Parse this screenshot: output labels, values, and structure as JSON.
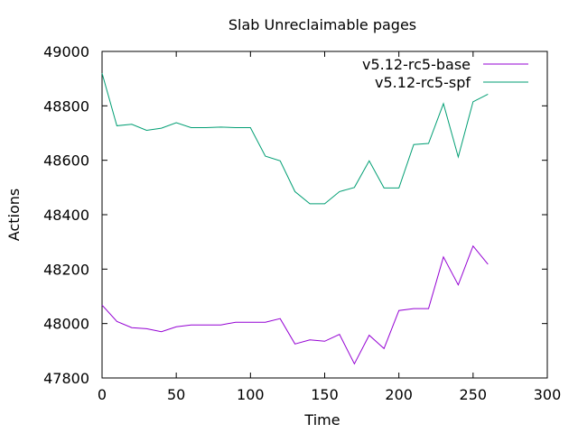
{
  "chart_data": {
    "type": "line",
    "title": "Slab Unreclaimable pages",
    "xlabel": "Time",
    "ylabel": "Actions",
    "xlim": [
      0,
      300
    ],
    "ylim": [
      47800,
      49000
    ],
    "x_ticks": [
      0,
      50,
      100,
      150,
      200,
      250,
      300
    ],
    "y_ticks": [
      47800,
      48000,
      48200,
      48400,
      48600,
      48800,
      49000
    ],
    "grid": false,
    "legend_position": "top-right",
    "x": [
      0,
      10,
      20,
      30,
      40,
      50,
      60,
      70,
      80,
      90,
      100,
      110,
      120,
      130,
      140,
      150,
      160,
      170,
      180,
      190,
      200,
      210,
      220,
      230,
      240,
      250,
      260
    ],
    "series": [
      {
        "name": "v5.12-rc5-base",
        "color": "#9400d3",
        "values": [
          48068,
          48008,
          47985,
          47981,
          47970,
          47988,
          47995,
          47995,
          47995,
          48005,
          48005,
          48005,
          48018,
          47925,
          47940,
          47935,
          47960,
          47852,
          47957,
          47908,
          48048,
          48055,
          48055,
          48245,
          48142,
          48285,
          48218
        ]
      },
      {
        "name": "v5.12-rc5-spf",
        "color": "#009e73",
        "values": [
          48920,
          48727,
          48732,
          48710,
          48718,
          48738,
          48720,
          48720,
          48722,
          48720,
          48720,
          48615,
          48598,
          48485,
          48440,
          48440,
          48485,
          48500,
          48598,
          48498,
          48498,
          48658,
          48662,
          48808,
          48612,
          48815,
          48843
        ]
      }
    ]
  }
}
